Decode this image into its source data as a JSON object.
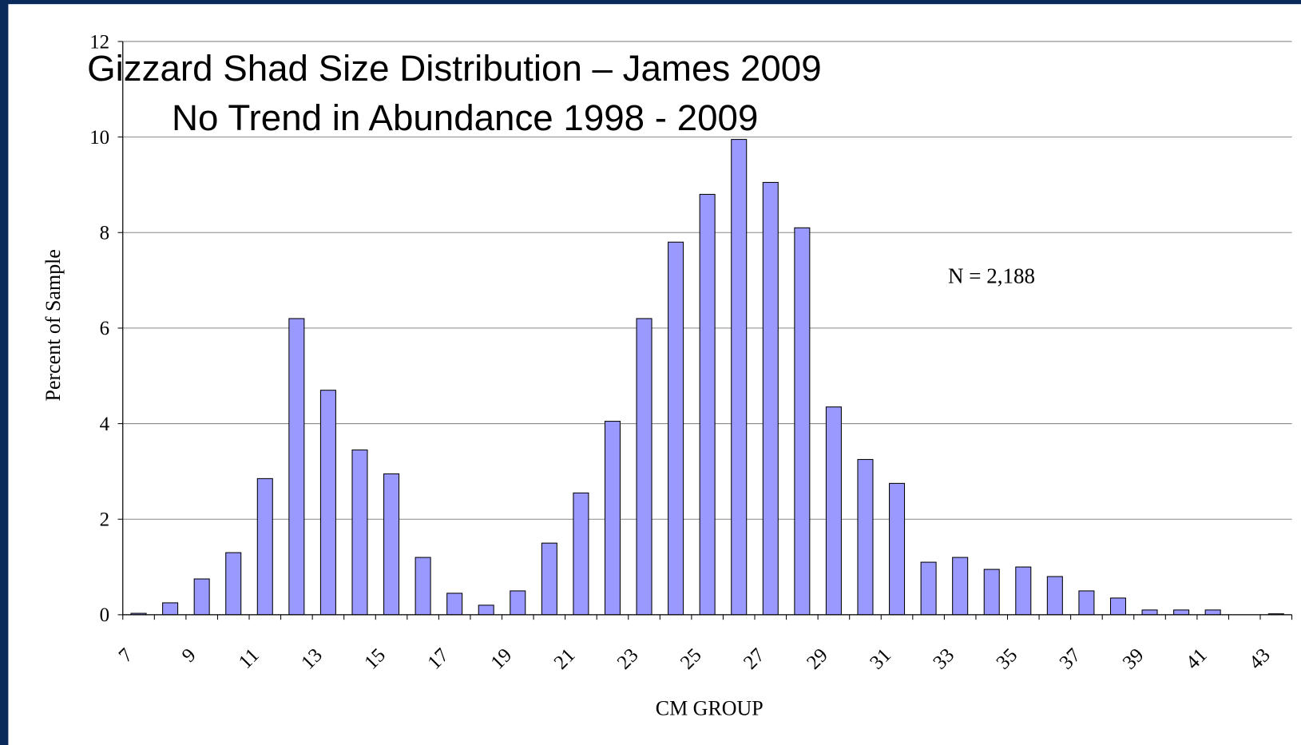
{
  "chart_data": {
    "type": "bar",
    "title": "Gizzard Shad Size Distribution – James 2009",
    "subtitle": "No Trend in Abundance 1998 - 2009",
    "x_label": "CM GROUP",
    "y_label": "Percent of Sample",
    "annotation": "N = 2,188",
    "categories": [
      "7",
      null,
      "9",
      null,
      "11",
      null,
      "13",
      null,
      "15",
      null,
      "17",
      null,
      "19",
      null,
      "21",
      null,
      "23",
      null,
      "25",
      null,
      "27",
      null,
      "29",
      null,
      "31",
      null,
      "33",
      null,
      "35",
      null,
      "37",
      null,
      "39",
      null,
      "41",
      null,
      "43"
    ],
    "values": [
      0.03,
      0.25,
      0.75,
      1.3,
      2.85,
      6.2,
      4.7,
      3.45,
      2.95,
      1.2,
      0.45,
      0.2,
      0.5,
      1.5,
      2.55,
      4.05,
      6.2,
      7.8,
      8.8,
      9.95,
      9.05,
      8.1,
      4.35,
      3.25,
      2.75,
      1.1,
      1.2,
      0.95,
      1.0,
      0.8,
      0.5,
      0.35,
      0.1,
      0.1,
      0.1,
      0,
      0.02
    ],
    "color": "#9999ff",
    "ylim": [
      0,
      12
    ],
    "yticks": [
      0,
      2,
      4,
      6,
      8,
      10,
      12
    ],
    "grid": true
  }
}
